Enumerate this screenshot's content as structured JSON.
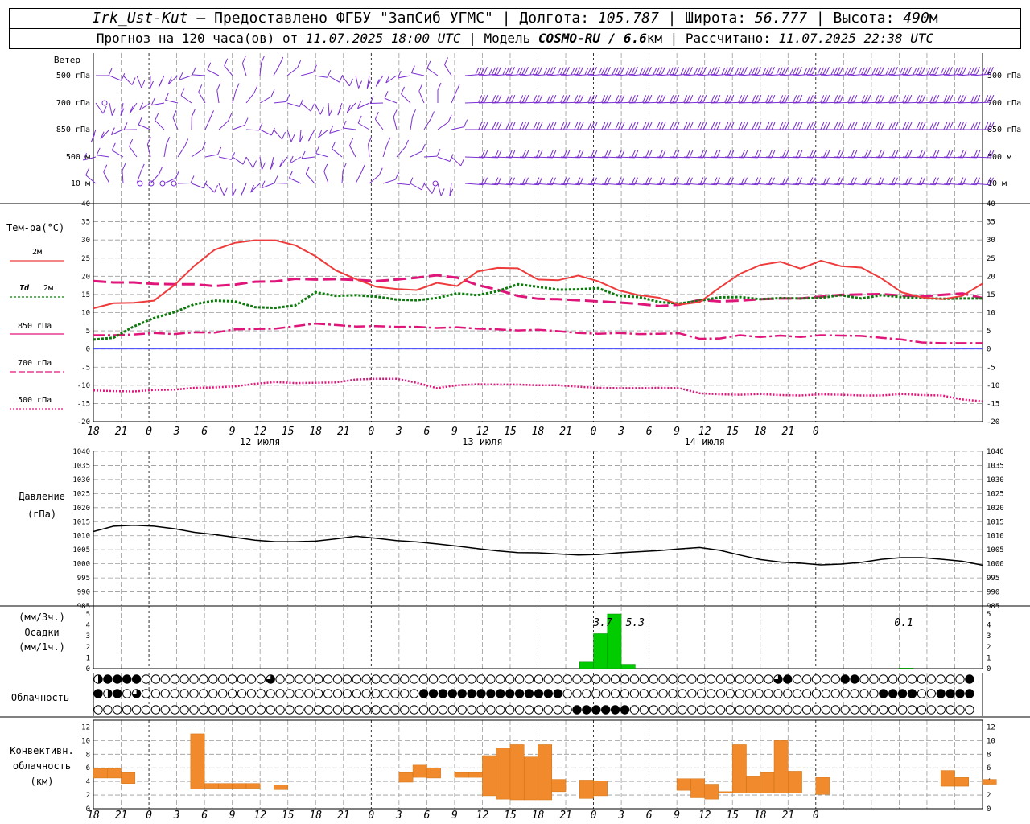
{
  "header": {
    "station": "Irk_Ust-Kut",
    "provider": " – Предоставлено ФГБУ \"ЗапСиб УГМС\" | Долгота: ",
    "lon": "105.787",
    "lat_label": " | Широта: ",
    "lat": "56.777",
    "alt_label": " | Высота: ",
    "alt": "490",
    "alt_unit": "м",
    "forecast_prefix": "Прогноз на 120 часа(ов) от ",
    "forecast_time": "11.07.2025 18:00 UTC",
    "model_label": "  | Модель ",
    "model": "COSMO-RU / 6.6",
    "model_unit": "км",
    "calc_label": " | Рассчитано: ",
    "calc_time": "11.07.2025 22:38 UTC"
  },
  "colors": {
    "t2m": "#ee3c3c",
    "td2m": "#0d7a0d",
    "level": "#e0157a",
    "wind": "#7a2fd0",
    "precip": "#00cc00",
    "conv": "#f08a2c",
    "zero_line": "#4444ff"
  },
  "labels": {
    "wind": "Ветер",
    "wind_levels": [
      "500 гПа",
      "700 гПа",
      "850 гПа",
      "500  м",
      "10   м"
    ],
    "temp": "Тем-ра(°С)",
    "leg_t2m": "2м",
    "leg_td": "Td",
    "leg_td2": "2м",
    "leg_850": "850 гПа",
    "leg_700": "700 гПа",
    "leg_500": "500 гПа",
    "pressure": "Давление",
    "pressure_unit": "(гПа)",
    "precip_3h": "(мм/3ч.)",
    "precip": "Осадки",
    "precip_1h": "(мм/1ч.)",
    "cloud": "Облачность",
    "conv1": "Конвективн.",
    "conv2": "облачность",
    "conv3": "(км)"
  },
  "chart_data": {
    "type": "line",
    "x_hours_labels": [
      "18",
      "21",
      "0",
      "3",
      "6",
      "9",
      "12",
      "15",
      "18",
      "21",
      "0",
      "3",
      "6",
      "9",
      "12",
      "15",
      "18",
      "21",
      "0",
      "3",
      "6",
      "9",
      "12",
      "15",
      "18",
      "21",
      "0"
    ],
    "day_labels": [
      "12 июля",
      "13 июля",
      "14 июля"
    ],
    "temperature": {
      "ylim": [
        -20,
        40
      ],
      "ticks": [
        -20,
        -15,
        -10,
        -5,
        0,
        5,
        10,
        15,
        20,
        25,
        30,
        35,
        40
      ],
      "t2m": [
        11.2,
        12.6,
        12.7,
        13.3,
        17.5,
        22.9,
        27.3,
        29.2,
        29.9,
        29.9,
        28.5,
        25.5,
        21.6,
        19.2,
        17.1,
        16.5,
        16.2,
        18.2,
        17.3,
        21.3,
        22.3,
        22.2,
        19.1,
        18.9,
        20.2,
        18.6,
        16.1,
        14.8,
        14.1,
        12.2,
        12.9,
        16.9,
        20.7,
        23.1,
        24.0,
        22.1,
        24.3,
        22.8,
        22.4,
        19.4,
        15.6,
        14.2,
        13.7,
        14.6,
        18.0
      ],
      "td2m": [
        2.6,
        3.1,
        6.2,
        8.5,
        10.1,
        12.3,
        13.3,
        13.1,
        11.5,
        11.3,
        12.0,
        15.6,
        14.6,
        14.8,
        14.4,
        13.6,
        13.4,
        14.0,
        15.3,
        14.8,
        15.9,
        17.8,
        17.1,
        16.3,
        16.4,
        16.7,
        14.6,
        14.3,
        12.9,
        12.5,
        13.3,
        14.2,
        14.3,
        13.7,
        14.0,
        13.9,
        14.1,
        14.8,
        13.9,
        14.8,
        14.3,
        14.0,
        13.8,
        13.9,
        13.9
      ],
      "t850": [
        3.8,
        3.8,
        4.0,
        4.4,
        4.1,
        4.6,
        4.5,
        5.4,
        5.5,
        5.6,
        6.3,
        7.0,
        6.6,
        6.2,
        6.3,
        6.1,
        6.1,
        5.8,
        6.0,
        5.6,
        5.4,
        5.1,
        5.3,
        4.9,
        4.4,
        4.2,
        4.4,
        4.1,
        4.2,
        4.3,
        2.8,
        2.9,
        3.8,
        3.3,
        3.7,
        3.3,
        3.8,
        3.7,
        3.6,
        3.1,
        2.6,
        1.8,
        1.6,
        1.6,
        1.6
      ],
      "t700": [
        18.7,
        18.3,
        18.3,
        17.9,
        17.8,
        17.8,
        17.3,
        17.7,
        18.5,
        18.6,
        19.3,
        19.1,
        19.2,
        19.0,
        18.7,
        19.1,
        19.6,
        20.3,
        19.6,
        17.6,
        16.3,
        14.6,
        13.8,
        13.7,
        13.4,
        13.1,
        12.8,
        12.4,
        11.8,
        12.2,
        13.5,
        13.1,
        13.3,
        13.7,
        13.9,
        13.9,
        14.4,
        14.9,
        15.0,
        15.1,
        14.7,
        14.5,
        14.9,
        15.3,
        14.0
      ],
      "t500": [
        -11.4,
        -11.6,
        -11.7,
        -11.3,
        -11.2,
        -10.7,
        -10.6,
        -10.3,
        -9.6,
        -9.1,
        -9.4,
        -9.3,
        -9.2,
        -8.4,
        -8.2,
        -8.2,
        -9.3,
        -10.8,
        -10.0,
        -9.7,
        -9.8,
        -9.8,
        -10.0,
        -10.0,
        -10.4,
        -10.7,
        -10.8,
        -10.8,
        -10.7,
        -10.8,
        -12.2,
        -12.5,
        -12.6,
        -12.4,
        -12.7,
        -12.8,
        -12.5,
        -12.6,
        -12.8,
        -12.8,
        -12.4,
        -12.7,
        -12.8,
        -13.9,
        -14.4
      ]
    },
    "pressure": {
      "ylim": [
        985,
        1040
      ],
      "ticks": [
        985,
        990,
        995,
        1000,
        1005,
        1010,
        1015,
        1020,
        1025,
        1030,
        1035,
        1040
      ],
      "values": [
        1011.5,
        1013.4,
        1013.7,
        1013.4,
        1012.5,
        1011.2,
        1010.4,
        1009.4,
        1008.4,
        1007.9,
        1007.9,
        1008.1,
        1008.9,
        1009.8,
        1009.1,
        1008.3,
        1007.8,
        1007.1,
        1006.3,
        1005.4,
        1004.6,
        1004.0,
        1003.9,
        1003.5,
        1003.1,
        1003.3,
        1003.9,
        1004.3,
        1004.7,
        1005.3,
        1005.8,
        1004.8,
        1003.1,
        1001.5,
        1000.6,
        1000.2,
        999.6,
        999.9,
        1000.5,
        1001.6,
        1002.2,
        1002.2,
        1001.6,
        1000.9,
        999.5
      ]
    },
    "precip": {
      "ylim": [
        0,
        5
      ],
      "ticks": [
        0,
        1,
        2,
        3,
        4,
        5
      ],
      "bars": [
        {
          "h": 52.5,
          "v": 0.6
        },
        {
          "h": 54,
          "v": 3.2
        },
        {
          "h": 55.5,
          "v": 5.0
        },
        {
          "h": 57,
          "v": 0.4
        },
        {
          "h": 87,
          "v": 0.05
        }
      ],
      "totals": [
        {
          "h": 55,
          "label": "3.7"
        },
        {
          "h": 58.5,
          "label": "5.3"
        },
        {
          "h": 87.5,
          "label": "0.1"
        }
      ]
    },
    "cloud_rows": [
      "12222000000000000030000000000000000000000000000000000000000000000000000320000022000000000002",
      "21203000000000000000000000000000002222222222222220000000000000000000000000000000002222002222",
      "00000000000000000000000000000000000000000000000000222222000000000000000000000000000000000000"
    ],
    "convective": {
      "ylim": [
        0,
        13
      ],
      "ticks": [
        0,
        2,
        4,
        6,
        8,
        10,
        12
      ],
      "bars": [
        {
          "h": 0,
          "w": 1.5,
          "b": 4.5,
          "t": 5.9
        },
        {
          "h": 1.5,
          "w": 1.5,
          "b": 4.5,
          "t": 5.9
        },
        {
          "h": 3,
          "w": 1.5,
          "b": 3.7,
          "t": 5.3
        },
        {
          "h": 10.5,
          "w": 1.5,
          "b": 2.9,
          "t": 11.0
        },
        {
          "h": 12,
          "w": 1.5,
          "b": 3.0,
          "t": 3.7
        },
        {
          "h": 13.5,
          "w": 1.5,
          "b": 3.0,
          "t": 3.7
        },
        {
          "h": 15,
          "w": 1.5,
          "b": 3.0,
          "t": 3.7
        },
        {
          "h": 16.5,
          "w": 1.5,
          "b": 3.0,
          "t": 3.7
        },
        {
          "h": 19.5,
          "w": 1.5,
          "b": 2.8,
          "t": 3.5
        },
        {
          "h": 33,
          "w": 1.5,
          "b": 3.9,
          "t": 5.3
        },
        {
          "h": 34.5,
          "w": 1.5,
          "b": 4.6,
          "t": 6.4
        },
        {
          "h": 36,
          "w": 1.5,
          "b": 4.5,
          "t": 6.0
        },
        {
          "h": 39,
          "w": 1.5,
          "b": 4.6,
          "t": 5.3
        },
        {
          "h": 40.5,
          "w": 1.5,
          "b": 4.6,
          "t": 5.3
        },
        {
          "h": 42,
          "w": 1.5,
          "b": 1.9,
          "t": 7.8
        },
        {
          "h": 43.5,
          "w": 1.5,
          "b": 1.4,
          "t": 8.9
        },
        {
          "h": 45,
          "w": 1.5,
          "b": 1.3,
          "t": 9.4
        },
        {
          "h": 46.5,
          "w": 1.5,
          "b": 1.3,
          "t": 7.6
        },
        {
          "h": 48,
          "w": 1.5,
          "b": 1.3,
          "t": 9.4
        },
        {
          "h": 49.5,
          "w": 1.5,
          "b": 2.5,
          "t": 4.3
        },
        {
          "h": 52.5,
          "w": 1.5,
          "b": 1.5,
          "t": 4.2
        },
        {
          "h": 54,
          "w": 1.5,
          "b": 1.9,
          "t": 4.1
        },
        {
          "h": 63,
          "w": 1.5,
          "b": 2.7,
          "t": 4.4
        },
        {
          "h": 64.5,
          "w": 1.5,
          "b": 1.6,
          "t": 4.4
        },
        {
          "h": 66,
          "w": 1.5,
          "b": 1.4,
          "t": 3.6
        },
        {
          "h": 67.5,
          "w": 1.5,
          "b": 2.3,
          "t": 2.5
        },
        {
          "h": 69,
          "w": 1.5,
          "b": 2.3,
          "t": 9.4
        },
        {
          "h": 70.5,
          "w": 1.5,
          "b": 2.3,
          "t": 4.8
        },
        {
          "h": 72,
          "w": 1.5,
          "b": 2.3,
          "t": 5.3
        },
        {
          "h": 73.5,
          "w": 1.5,
          "b": 2.3,
          "t": 10.0
        },
        {
          "h": 75,
          "w": 1.5,
          "b": 2.3,
          "t": 5.5
        },
        {
          "h": 78,
          "w": 1.5,
          "b": 2.1,
          "t": 4.6
        },
        {
          "h": 91.5,
          "w": 1.5,
          "b": 3.3,
          "t": 5.6
        },
        {
          "h": 93,
          "w": 1.5,
          "b": 3.3,
          "t": 4.6
        },
        {
          "h": 96,
          "w": 1.5,
          "b": 3.6,
          "t": 4.3
        }
      ]
    }
  }
}
